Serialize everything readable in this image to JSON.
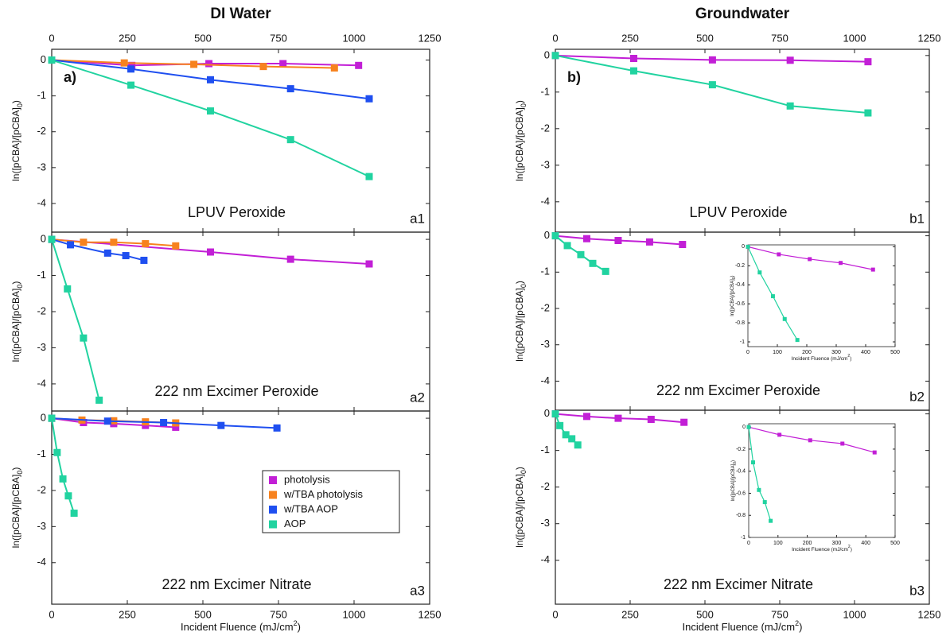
{
  "chart_data": [
    {
      "type": "line",
      "title": "DI Water",
      "panel_tag": "a)",
      "subtitle": "LPUV Peroxide",
      "label": "a1",
      "xtick_side": "top",
      "ylabel": [
        "ln([pCBA]/[pCBA]",
        "0",
        ")"
      ],
      "xlim": [
        0,
        1250
      ],
      "xticks": [
        0,
        250,
        500,
        750,
        1000,
        1250
      ],
      "ylim": [
        -4.8,
        0.3
      ],
      "yticks": [
        0,
        -1,
        -2,
        -3,
        -4
      ],
      "series": [
        {
          "color": "#c21fd6",
          "x": [
            0,
            265,
            520,
            765,
            1015
          ],
          "values": [
            0,
            -0.15,
            -0.1,
            -0.1,
            -0.15
          ]
        },
        {
          "color": "#f7821e",
          "x": [
            0,
            240,
            470,
            700,
            935
          ],
          "values": [
            0,
            -0.08,
            -0.12,
            -0.18,
            -0.22
          ]
        },
        {
          "color": "#1f4ff0",
          "x": [
            0,
            262,
            525,
            790,
            1050
          ],
          "values": [
            0,
            -0.25,
            -0.55,
            -0.8,
            -1.08
          ]
        },
        {
          "color": "#21d3a0",
          "x": [
            0,
            262,
            525,
            790,
            1050
          ],
          "values": [
            0,
            -0.7,
            -1.42,
            -2.22,
            -3.25
          ]
        }
      ]
    },
    {
      "type": "line",
      "subtitle": "222 nm Excimer Peroxide",
      "label": "a2",
      "xtick_side": "none",
      "ylabel": [
        "ln([pCBA]/[pCBA]",
        "0",
        ")"
      ],
      "xlim": [
        0,
        1250
      ],
      "xticks": [
        0,
        250,
        500,
        750,
        1000,
        1250
      ],
      "ylim": [
        -4.75,
        0.2
      ],
      "yticks": [
        0,
        -1,
        -2,
        -3,
        -4
      ],
      "series": [
        {
          "color": "#c21fd6",
          "x": [
            0,
            525,
            790,
            1050
          ],
          "values": [
            0,
            -0.35,
            -0.55,
            -0.68
          ]
        },
        {
          "color": "#f7821e",
          "x": [
            0,
            105,
            205,
            310,
            410
          ],
          "values": [
            0,
            -0.08,
            -0.08,
            -0.12,
            -0.18
          ]
        },
        {
          "color": "#1f4ff0",
          "x": [
            0,
            62,
            185,
            245,
            305
          ],
          "values": [
            0,
            -0.15,
            -0.38,
            -0.45,
            -0.58
          ]
        },
        {
          "color": "#21d3a0",
          "x": [
            0,
            52,
            105,
            157
          ],
          "values": [
            0,
            -1.37,
            -2.73,
            -4.45
          ]
        }
      ]
    },
    {
      "type": "line",
      "subtitle": "222 nm Excimer Nitrate",
      "label": "a3",
      "xtick_side": "bottom",
      "legend": true,
      "xlabel": [
        "Incident Fluence (mJ/cm",
        "2",
        ")"
      ],
      "ylabel": [
        "ln([pCBA]/[pCBA]",
        "0",
        ")"
      ],
      "xlim": [
        0,
        1250
      ],
      "xticks": [
        0,
        250,
        500,
        750,
        1000,
        1250
      ],
      "ylim": [
        -5.15,
        0.2
      ],
      "yticks": [
        0,
        -1,
        -2,
        -3,
        -4
      ],
      "series": [
        {
          "name": "photolysis",
          "color": "#c21fd6",
          "x": [
            0,
            105,
            205,
            310,
            410
          ],
          "values": [
            0,
            -0.12,
            -0.15,
            -0.2,
            -0.25
          ]
        },
        {
          "name": "w/TBA photolysis",
          "color": "#f7821e",
          "x": [
            0,
            100,
            205,
            310,
            410
          ],
          "values": [
            0,
            -0.05,
            -0.07,
            -0.1,
            -0.13
          ]
        },
        {
          "name": "w/TBA AOP",
          "color": "#1f4ff0",
          "x": [
            0,
            185,
            370,
            560,
            745
          ],
          "values": [
            0,
            -0.08,
            -0.12,
            -0.2,
            -0.27
          ]
        },
        {
          "name": "AOP",
          "color": "#21d3a0",
          "x": [
            0,
            18,
            37,
            55,
            74
          ],
          "values": [
            0,
            -0.95,
            -1.68,
            -2.15,
            -2.63
          ]
        }
      ]
    },
    {
      "type": "line",
      "title": "Groundwater",
      "panel_tag": "b)",
      "subtitle": "LPUV Peroxide",
      "label": "b1",
      "xtick_side": "top",
      "ylabel": [
        "ln([pCBA]/[pCBA]",
        "0",
        ")"
      ],
      "xlim": [
        0,
        1250
      ],
      "xticks": [
        0,
        250,
        500,
        750,
        1000,
        1250
      ],
      "ylim": [
        -4.83,
        0.17
      ],
      "yticks": [
        0,
        -1,
        -2,
        -3,
        -4
      ],
      "series": [
        {
          "color": "#c21fd6",
          "x": [
            0,
            262,
            525,
            785,
            1045
          ],
          "values": [
            0,
            -0.08,
            -0.12,
            -0.13,
            -0.17
          ]
        },
        {
          "color": "#21d3a0",
          "x": [
            0,
            262,
            525,
            785,
            1045
          ],
          "values": [
            0,
            -0.42,
            -0.8,
            -1.38,
            -1.57
          ]
        }
      ]
    },
    {
      "type": "line",
      "subtitle": "222 nm Excimer Peroxide",
      "label": "b2",
      "xtick_side": "none",
      "ylabel": [
        "ln([pCBA]/[pCBA]",
        "0",
        ")"
      ],
      "xlim": [
        0,
        1250
      ],
      "xticks": [
        0,
        250,
        500,
        750,
        1000,
        1250
      ],
      "ylim": [
        -4.8,
        0.1
      ],
      "yticks": [
        0,
        -1,
        -2,
        -3,
        -4
      ],
      "series": [
        {
          "color": "#c21fd6",
          "x": [
            0,
            105,
            210,
            315,
            425
          ],
          "values": [
            0,
            -0.08,
            -0.13,
            -0.17,
            -0.24
          ]
        },
        {
          "color": "#21d3a0",
          "x": [
            0,
            40,
            85,
            125,
            168
          ],
          "values": [
            0,
            -0.27,
            -0.52,
            -0.76,
            -0.98
          ]
        }
      ]
    },
    {
      "type": "line",
      "subtitle": "222 nm Excimer Nitrate",
      "label": "b3",
      "xtick_side": "bottom",
      "xlabel": [
        "Incident Fluence (mJ/cm",
        "2",
        ")"
      ],
      "ylabel": [
        "ln([pCBA]/[pCBA]",
        "0",
        ")"
      ],
      "xlim": [
        0,
        1250
      ],
      "xticks": [
        0,
        250,
        500,
        750,
        1000,
        1250
      ],
      "ylim": [
        -5.2,
        0.1
      ],
      "yticks": [
        0,
        -1,
        -2,
        -3,
        -4
      ],
      "series": [
        {
          "color": "#c21fd6",
          "x": [
            0,
            105,
            210,
            320,
            430
          ],
          "values": [
            0,
            -0.07,
            -0.12,
            -0.15,
            -0.23
          ]
        },
        {
          "color": "#21d3a0",
          "x": [
            0,
            15,
            35,
            55,
            75
          ],
          "values": [
            0,
            -0.32,
            -0.57,
            -0.68,
            -0.85
          ]
        }
      ]
    },
    {
      "type": "line",
      "inset": true,
      "xtick_side": "bottom",
      "xlabel": [
        "Incident Fluence (mJ/cm",
        "2",
        ")"
      ],
      "ylabel": [
        "ln([pCBA]/[pCBA]",
        "0",
        ")"
      ],
      "xlim": [
        0,
        500
      ],
      "xticks": [
        0,
        100,
        200,
        300,
        400,
        500
      ],
      "ylim": [
        -1.05,
        0.02
      ],
      "yticks": [
        0,
        -0.2,
        -0.4,
        -0.6,
        -0.8,
        -1
      ],
      "series": [
        {
          "color": "#c21fd6",
          "x": [
            0,
            105,
            210,
            315,
            425
          ],
          "values": [
            0,
            -0.08,
            -0.13,
            -0.17,
            -0.24
          ]
        },
        {
          "color": "#21d3a0",
          "x": [
            0,
            40,
            85,
            125,
            168
          ],
          "values": [
            0,
            -0.27,
            -0.52,
            -0.76,
            -0.98
          ]
        }
      ]
    },
    {
      "type": "line",
      "inset": true,
      "xtick_side": "bottom",
      "xlabel": [
        "Incident Fluence (mJ/cm",
        "2",
        ")"
      ],
      "ylabel": [
        "ln([pCBA]/[pCBA]",
        "0",
        ")"
      ],
      "xlim": [
        0,
        500
      ],
      "xticks": [
        0,
        100,
        200,
        300,
        400,
        500
      ],
      "ylim": [
        -1,
        0.03
      ],
      "yticks": [
        0,
        -0.2,
        -0.4,
        -0.6,
        -0.8,
        -1
      ],
      "series": [
        {
          "color": "#c21fd6",
          "x": [
            0,
            105,
            210,
            320,
            430
          ],
          "values": [
            0,
            -0.07,
            -0.12,
            -0.15,
            -0.23
          ]
        },
        {
          "color": "#21d3a0",
          "x": [
            0,
            15,
            35,
            55,
            75
          ],
          "values": [
            0,
            -0.32,
            -0.57,
            -0.68,
            -0.85
          ]
        }
      ]
    }
  ]
}
